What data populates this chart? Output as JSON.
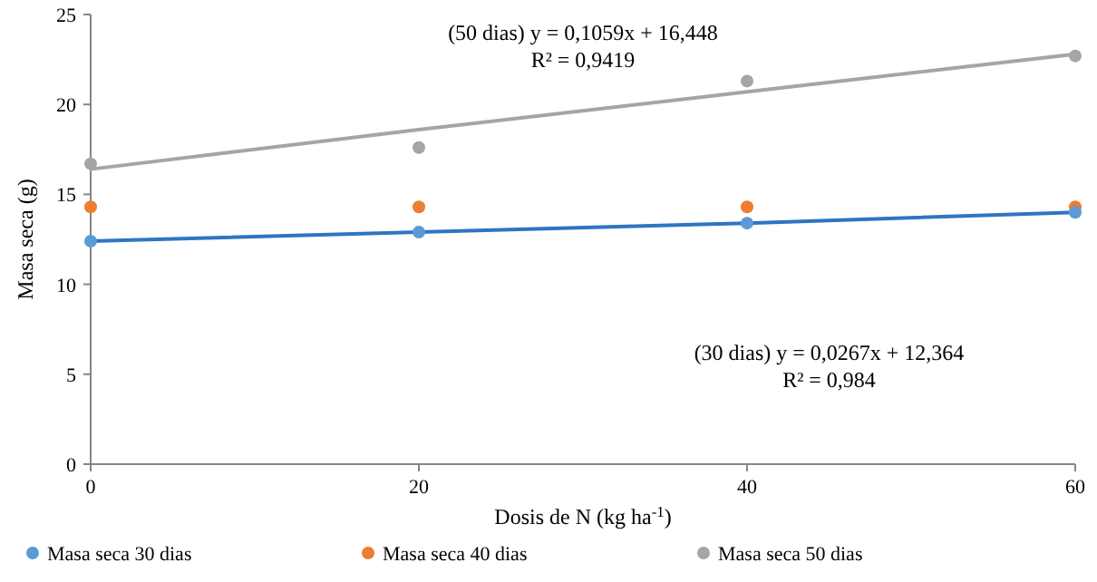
{
  "chart_data": {
    "type": "scatter",
    "ylabel": "Masa seca (g)",
    "xlabel": "Dosis de N (kg ha$^{-1}$)",
    "x": [
      0,
      20,
      40,
      60
    ],
    "xlim": [
      0,
      60
    ],
    "xticks": [
      0,
      20,
      40,
      60
    ],
    "ylim": [
      0,
      25
    ],
    "yticks": [
      0,
      5,
      10,
      15,
      20,
      25
    ],
    "grid": false,
    "legend": "bottom",
    "marker": "circle",
    "series": [
      {
        "name": "Masa seca 30 dias",
        "color": "#5b9bd5",
        "values": [
          12.4,
          12.9,
          13.4,
          14.0
        ]
      },
      {
        "name": "Masa seca 40 dias",
        "color": "#ed7d31",
        "values": [
          14.3,
          14.3,
          14.3,
          14.3
        ]
      },
      {
        "name": "Masa seca 50 dias",
        "color": "#a5a5a5",
        "values": [
          16.7,
          17.6,
          21.3,
          22.7
        ]
      },
      {
        "type": "line",
        "color": "#2e75c4",
        "values": [
          12.4,
          12.9,
          13.4,
          14.0
        ],
        "marker": "none",
        "line_style": "solid"
      },
      {
        "type": "line",
        "color": "#a5a5a5",
        "values": [
          16.4,
          18.6,
          20.7,
          22.8
        ],
        "marker": "none",
        "line_style": "solid"
      }
    ],
    "annotations": [
      "(50 dias) y = 0,1059x  + 16,448\nR² = 0,9419",
      "(30 dias) y = 0,0267x  + 12,364\nR² = 0,984"
    ]
  }
}
